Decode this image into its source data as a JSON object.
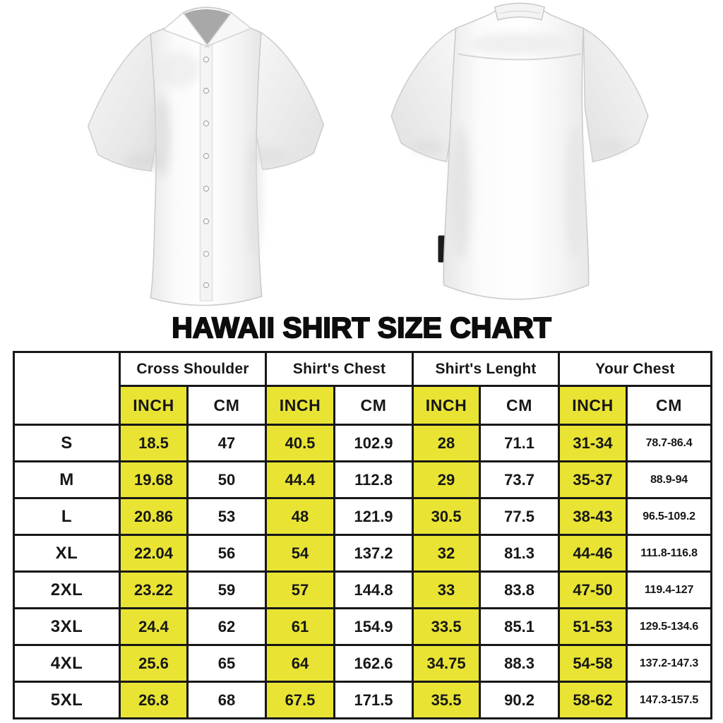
{
  "title": "HAWAII SHIRT SIZE CHART",
  "images": {
    "front_shirt": "white short-sleeve button-up shirt, front view",
    "back_shirt": "white short-sleeve button-up shirt, back view"
  },
  "colors": {
    "highlight_yellow": "#e9e434",
    "border_black": "#171717",
    "background": "#ffffff"
  },
  "table": {
    "groups": [
      "Cross Shoulder",
      "Shirt's Chest",
      "Shirt's Lenght",
      "Your Chest"
    ],
    "units": [
      "INCH",
      "CM"
    ],
    "rows": [
      {
        "size": "S",
        "values": [
          "18.5",
          "47",
          "40.5",
          "102.9",
          "28",
          "71.1",
          "31-34",
          "78.7-86.4"
        ]
      },
      {
        "size": "M",
        "values": [
          "19.68",
          "50",
          "44.4",
          "112.8",
          "29",
          "73.7",
          "35-37",
          "88.9-94"
        ]
      },
      {
        "size": "L",
        "values": [
          "20.86",
          "53",
          "48",
          "121.9",
          "30.5",
          "77.5",
          "38-43",
          "96.5-109.2"
        ]
      },
      {
        "size": "XL",
        "values": [
          "22.04",
          "56",
          "54",
          "137.2",
          "32",
          "81.3",
          "44-46",
          "111.8-116.8"
        ]
      },
      {
        "size": "2XL",
        "values": [
          "23.22",
          "59",
          "57",
          "144.8",
          "33",
          "83.8",
          "47-50",
          "119.4-127"
        ]
      },
      {
        "size": "3XL",
        "values": [
          "24.4",
          "62",
          "61",
          "154.9",
          "33.5",
          "85.1",
          "51-53",
          "129.5-134.6"
        ]
      },
      {
        "size": "4XL",
        "values": [
          "25.6",
          "65",
          "64",
          "162.6",
          "34.75",
          "88.3",
          "54-58",
          "137.2-147.3"
        ]
      },
      {
        "size": "5XL",
        "values": [
          "26.8",
          "68",
          "67.5",
          "171.5",
          "35.5",
          "90.2",
          "58-62",
          "147.3-157.5"
        ]
      }
    ]
  }
}
